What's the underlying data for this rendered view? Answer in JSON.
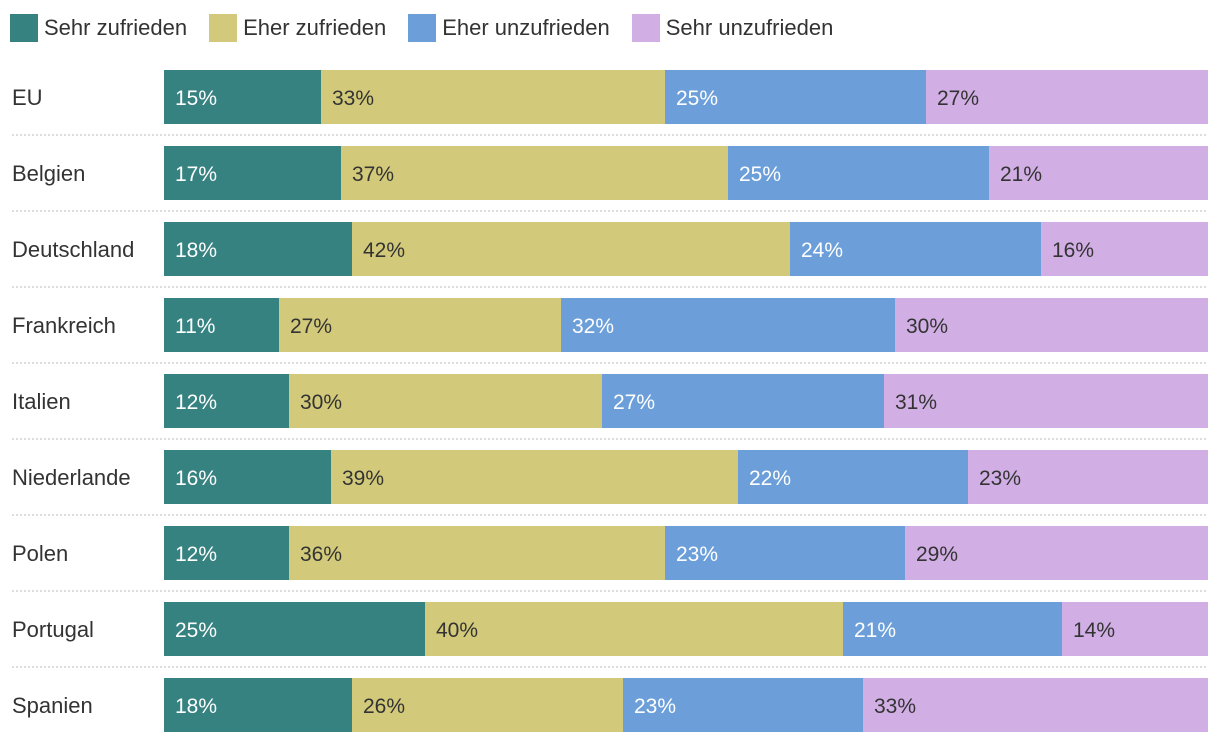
{
  "chart_data": {
    "type": "bar",
    "orientation": "horizontal",
    "stacked": true,
    "normalized_to_percent": true,
    "title": "",
    "xlabel": "",
    "ylabel": "",
    "legend_position": "top-left",
    "categories": [
      "EU",
      "Belgien",
      "Deutschland",
      "Frankreich",
      "Italien",
      "Niederlande",
      "Polen",
      "Portugal",
      "Spanien"
    ],
    "series": [
      {
        "name": "Sehr zufrieden",
        "color": "#358281",
        "label_color": "#ffffff",
        "values": [
          15,
          17,
          18,
          11,
          12,
          16,
          12,
          25,
          18
        ]
      },
      {
        "name": "Eher zufrieden",
        "color": "#d2ca7a",
        "label_color": "#333333",
        "values": [
          33,
          37,
          42,
          27,
          30,
          39,
          36,
          40,
          26
        ]
      },
      {
        "name": "Eher unzufrieden",
        "color": "#6c9fd9",
        "label_color": "#ffffff",
        "values": [
          25,
          25,
          24,
          32,
          27,
          22,
          23,
          21,
          23
        ]
      },
      {
        "name": "Sehr unzufrieden",
        "color": "#d1afe5",
        "label_color": "#333333",
        "values": [
          27,
          21,
          16,
          30,
          31,
          23,
          29,
          14,
          33
        ]
      }
    ],
    "value_suffix": "%"
  }
}
